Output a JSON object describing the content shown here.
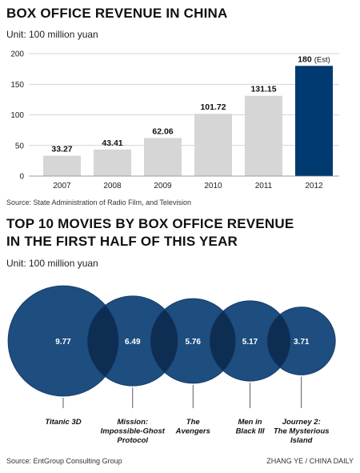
{
  "chart_data": [
    {
      "type": "bar",
      "title": "BOX OFFICE REVENUE IN CHINA",
      "subtitle": "Unit: 100 million yuan",
      "categories": [
        "2007",
        "2008",
        "2009",
        "2010",
        "2011",
        "2012"
      ],
      "values": [
        33.27,
        43.41,
        62.06,
        101.72,
        131.15,
        180
      ],
      "value_labels": [
        "33.27",
        "43.41",
        "62.06",
        "101.72",
        "131.15",
        "180"
      ],
      "estimate_note": "(Est)",
      "highlight_category": "2012",
      "yticks": [
        0,
        50,
        100,
        150,
        200
      ],
      "ylim": [
        0,
        200
      ],
      "grid": true,
      "colors": {
        "bar": "#d6d6d6",
        "highlight": "#003a70"
      },
      "source": "Source: State Administration of Radio Film, and Television"
    },
    {
      "type": "bubble",
      "title_lines": [
        "TOP 10 MOVIES BY BOX OFFICE REVENUE",
        "IN THE FIRST HALF OF THIS YEAR"
      ],
      "subtitle": "Unit: 100 million yuan",
      "items": [
        {
          "value": 9.77,
          "label": "9.77",
          "name_lines": [
            "Titanic 3D"
          ]
        },
        {
          "value": 6.49,
          "label": "6.49",
          "name_lines": [
            "Mission:",
            "Impossible-Ghost",
            "Protocol"
          ]
        },
        {
          "value": 5.76,
          "label": "5.76",
          "name_lines": [
            "The",
            "Avengers"
          ]
        },
        {
          "value": 5.17,
          "label": "5.17",
          "name_lines": [
            "Men in",
            "Black III"
          ]
        },
        {
          "value": 3.71,
          "label": "3.71",
          "name_lines": [
            "Journey 2:",
            "The Mysterious",
            "Island"
          ]
        }
      ],
      "colors": {
        "circle": "#1e4d80",
        "overlap": "#0d2d52"
      },
      "source": "Source: EntGroup Consulting Group",
      "credit": "ZHANG YE / CHINA DAILY"
    }
  ]
}
